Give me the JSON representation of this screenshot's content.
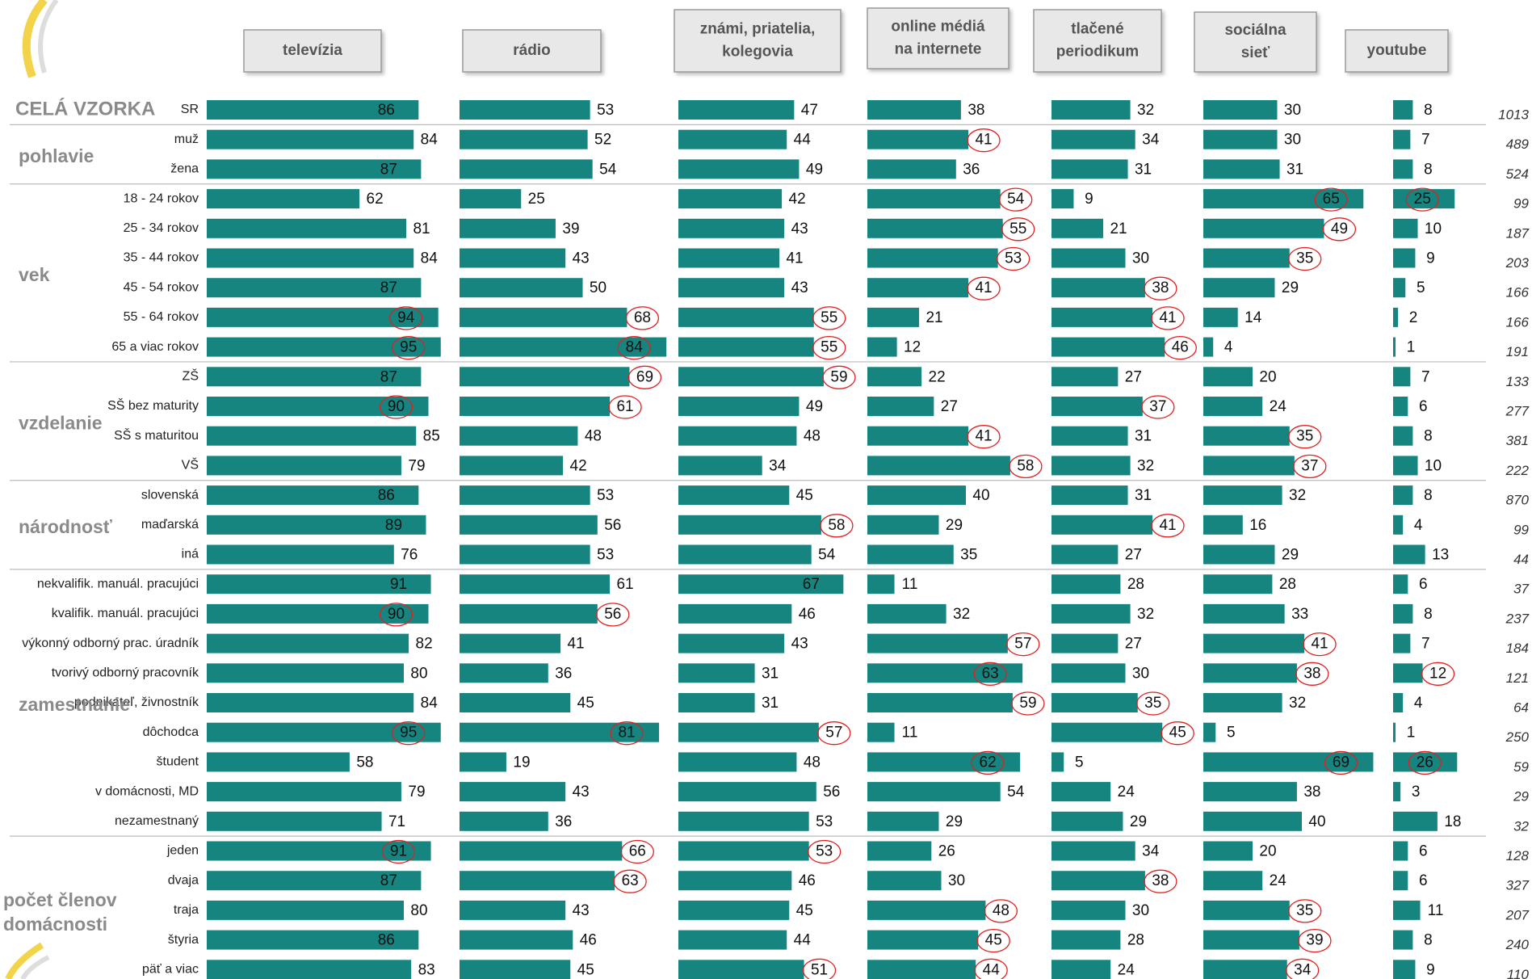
{
  "chart_data": {
    "type": "bar",
    "groups": [
      {
        "name": [
          "CELÁ VZORKA"
        ],
        "categories": [
          "SR"
        ]
      },
      {
        "name": [
          "pohlavie"
        ],
        "categories": [
          "muž",
          "žena"
        ]
      },
      {
        "name": [
          "vek"
        ],
        "categories": [
          "18 - 24 rokov",
          "25 - 34 rokov",
          "35 - 44 rokov",
          "45 - 54 rokov",
          "55 - 64 rokov",
          "65 a viac rokov"
        ]
      },
      {
        "name": [
          "vzdelanie"
        ],
        "categories": [
          "ZŠ",
          "SŠ bez maturity",
          "SŠ s maturitou",
          "VŠ"
        ]
      },
      {
        "name": [
          "národnosť"
        ],
        "categories": [
          "slovenská",
          "maďarská",
          "iná"
        ]
      },
      {
        "name": [
          "zamestnanie"
        ],
        "categories": [
          "nekvalifik. manuál. pracujúci",
          "kvalifik. manuál. pracujúci",
          "výkonný odborný prac. úradník",
          "tvorivý odborný pracovník",
          "podnikateľ, živnostník",
          "dôchodca",
          "študent",
          "v domácnosti, MD",
          "nezamestnaný"
        ]
      },
      {
        "name": [
          "počet členov",
          "domácnosti"
        ],
        "categories": [
          "jeden",
          "dvaja",
          "traja",
          "štyria",
          "päť a viac"
        ]
      }
    ],
    "color": "#16857f",
    "series": [
      {
        "name": [
          "televízia"
        ],
        "values": [
          86,
          84,
          87,
          62,
          81,
          84,
          87,
          94,
          95,
          87,
          90,
          85,
          79,
          86,
          89,
          76,
          91,
          90,
          82,
          80,
          84,
          95,
          58,
          79,
          71,
          91,
          87,
          80,
          86,
          83
        ],
        "circled": [
          7,
          8,
          10,
          17,
          21,
          25
        ]
      },
      {
        "name": [
          "rádio"
        ],
        "values": [
          53,
          52,
          54,
          25,
          39,
          43,
          50,
          68,
          84,
          69,
          61,
          48,
          42,
          53,
          56,
          53,
          61,
          56,
          41,
          36,
          45,
          81,
          19,
          43,
          36,
          66,
          63,
          43,
          46,
          45
        ],
        "circled": [
          7,
          8,
          9,
          10,
          17,
          21,
          25,
          26
        ]
      },
      {
        "name": [
          "známi, priatelia,",
          "kolegovia"
        ],
        "values": [
          47,
          44,
          49,
          42,
          43,
          41,
          43,
          55,
          55,
          59,
          49,
          48,
          34,
          45,
          58,
          54,
          67,
          46,
          43,
          31,
          31,
          57,
          48,
          56,
          53,
          53,
          46,
          45,
          44,
          51
        ],
        "circled": [
          7,
          8,
          9,
          14,
          21,
          25,
          29
        ]
      },
      {
        "name": [
          "online médiá",
          "na internete"
        ],
        "values": [
          38,
          41,
          36,
          54,
          55,
          53,
          41,
          21,
          12,
          22,
          27,
          41,
          58,
          40,
          29,
          35,
          11,
          32,
          57,
          63,
          59,
          11,
          62,
          54,
          29,
          26,
          30,
          48,
          45,
          44
        ],
        "circled": [
          1,
          3,
          4,
          5,
          6,
          11,
          12,
          18,
          19,
          20,
          22,
          27,
          28,
          29
        ]
      },
      {
        "name": [
          "tlačené",
          "periodikum"
        ],
        "values": [
          32,
          34,
          31,
          9,
          21,
          30,
          38,
          41,
          46,
          27,
          37,
          31,
          32,
          31,
          41,
          27,
          28,
          32,
          27,
          30,
          35,
          45,
          5,
          24,
          29,
          34,
          38,
          30,
          28,
          24
        ],
        "circled": [
          6,
          7,
          8,
          10,
          14,
          20,
          21,
          26
        ]
      },
      {
        "name": [
          "sociálna",
          "sieť"
        ],
        "values": [
          30,
          30,
          31,
          65,
          49,
          35,
          29,
          14,
          4,
          20,
          24,
          35,
          37,
          32,
          16,
          29,
          28,
          33,
          41,
          38,
          32,
          5,
          69,
          38,
          40,
          20,
          24,
          35,
          39,
          34
        ],
        "circled": [
          3,
          4,
          5,
          11,
          12,
          18,
          19,
          22,
          27,
          28,
          29
        ]
      },
      {
        "name": [
          "youtube"
        ],
        "values": [
          8,
          7,
          8,
          25,
          10,
          9,
          5,
          2,
          1,
          7,
          6,
          8,
          10,
          8,
          4,
          13,
          6,
          8,
          7,
          12,
          4,
          1,
          26,
          3,
          18,
          6,
          6,
          11,
          8,
          9
        ],
        "circled": [
          3,
          19,
          22
        ]
      }
    ],
    "n": [
      1013,
      489,
      524,
      99,
      187,
      203,
      166,
      166,
      191,
      133,
      277,
      381,
      222,
      870,
      99,
      44,
      37,
      237,
      184,
      121,
      64,
      250,
      59,
      29,
      32,
      128,
      327,
      207,
      240,
      110
    ]
  }
}
